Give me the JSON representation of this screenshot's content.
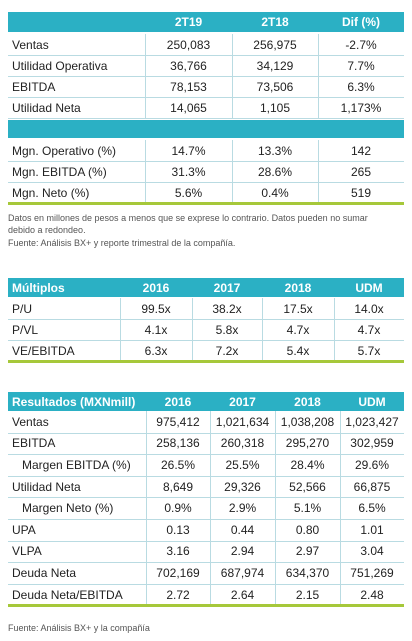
{
  "quarterly_table": {
    "header": [
      "2T19",
      "2T18",
      "Dif (%)"
    ],
    "rows": [
      [
        "Ventas",
        "250,083",
        "256,975",
        "-2.7%"
      ],
      [
        "Utilidad Operativa",
        "36,766",
        "34,129",
        "7.7%"
      ],
      [
        "EBITDA",
        "78,153",
        "73,506",
        "6.3%"
      ],
      [
        "Utilidad Neta",
        "14,065",
        "1,105",
        "1,173%"
      ]
    ],
    "margin_rows": [
      [
        "Mgn. Operativo (%)",
        "14.7%",
        "13.3%",
        "142"
      ],
      [
        "Mgn. EBITDA (%)",
        "31.3%",
        "28.6%",
        "265"
      ],
      [
        "Mgn. Neto (%)",
        "5.6%",
        "0.4%",
        "519"
      ]
    ],
    "notes": [
      "Datos en millones de pesos a menos que se exprese lo contrario. Datos pueden no sumar debido a redondeo.",
      "Fuente: Análisis BX+ y reporte trimestral de la compañía."
    ]
  },
  "multiples_table": {
    "header": [
      "Múltiplos",
      "2016",
      "2017",
      "2018",
      "UDM"
    ],
    "rows": [
      [
        "P/U",
        "99.5x",
        "38.2x",
        "17.5x",
        "14.0x"
      ],
      [
        "P/VL",
        "4.1x",
        "5.8x",
        "4.7x",
        "4.7x"
      ],
      [
        "VE/EBITDA",
        "6.3x",
        "7.2x",
        "5.4x",
        "5.7x"
      ]
    ]
  },
  "results_table": {
    "header": [
      "Resultados (MXNmill)",
      "2016",
      "2017",
      "2018",
      "UDM"
    ],
    "rows": [
      [
        "Ventas",
        "975,412",
        "1,021,634",
        "1,038,208",
        "1,023,427"
      ],
      [
        "EBITDA",
        "258,136",
        "260,318",
        "295,270",
        "302,959"
      ],
      [
        "Margen EBITDA (%)",
        "26.5%",
        "25.5%",
        "28.4%",
        "29.6%"
      ],
      [
        "Utilidad Neta",
        "8,649",
        "29,326",
        "52,566",
        "66,875"
      ],
      [
        "Margen Neto (%)",
        "0.9%",
        "2.9%",
        "5.1%",
        "6.5%"
      ],
      [
        "UPA",
        "0.13",
        "0.44",
        "0.80",
        "1.01"
      ],
      [
        "VLPA",
        "3.16",
        "2.94",
        "2.97",
        "3.04"
      ],
      [
        "Deuda Neta",
        "702,169",
        "687,974",
        "634,370",
        "751,269"
      ],
      [
        "Deuda Neta/EBITDA",
        "2.72",
        "2.64",
        "2.15",
        "2.48"
      ]
    ],
    "source": "Fuente: Análisis BX+ y la compañía"
  }
}
